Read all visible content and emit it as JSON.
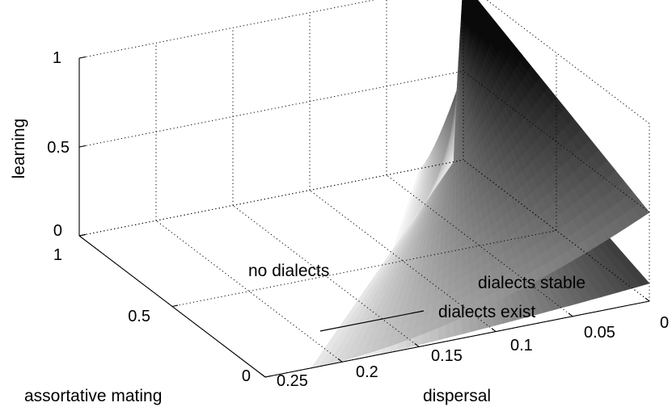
{
  "chart_data": {
    "type": "surface3d",
    "title": "",
    "axes": {
      "x": {
        "label": "dispersal",
        "ticks": [
          "0.25",
          "0.2",
          "0.15",
          "0.1",
          "0.05",
          "0"
        ],
        "range": [
          0,
          0.25
        ]
      },
      "y": {
        "label": "assortative mating",
        "ticks": [
          "0",
          "0.5",
          "1"
        ],
        "range": [
          0,
          1
        ]
      },
      "z": {
        "label": "learning",
        "ticks": [
          "0",
          "0.5",
          "1"
        ],
        "range": [
          0,
          1
        ]
      }
    },
    "grid": true,
    "colormap": "gray",
    "surfaces": [
      {
        "description_label": "upper",
        "min_dispersal_at_mating_0": 0.22,
        "max_learning_corner": 1
      },
      {
        "description_label": "lower",
        "min_dispersal_at_mating_0": 0.19,
        "max_learning_corner": 0.5
      }
    ],
    "annotations": [
      {
        "text": "no dialects"
      },
      {
        "text": "dialects stable"
      },
      {
        "text": "dialects exist"
      }
    ]
  }
}
